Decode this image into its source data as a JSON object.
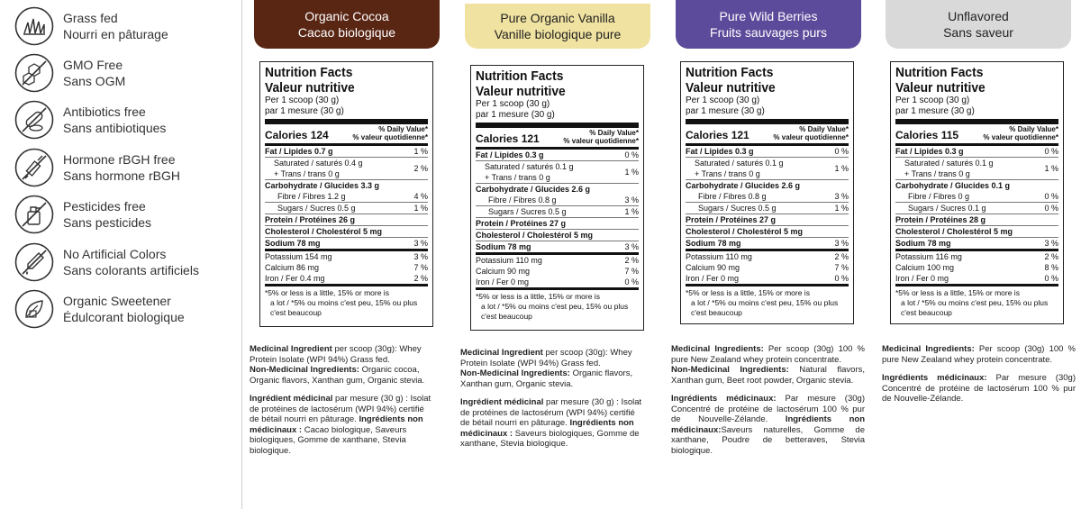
{
  "features": [
    {
      "icon": "grass-icon",
      "en": "Grass fed",
      "fr": "Nourri en pâturage"
    },
    {
      "icon": "dna-molecule-icon",
      "en": "GMO Free",
      "fr": "Sans OGM"
    },
    {
      "icon": "pill-capsule-icon",
      "en": "Antibiotics free",
      "fr": "Sans antibiotiques"
    },
    {
      "icon": "syringe-icon",
      "en": "Hormone rBGH free",
      "fr": "Sans hormone rBGH"
    },
    {
      "icon": "spray-can-icon",
      "en": "Pesticides free",
      "fr": "Sans pesticides"
    },
    {
      "icon": "dropper-icon",
      "en": "No Artificial Colors",
      "fr": "Sans colorants artificiels"
    },
    {
      "icon": "leaf-sweetener-icon",
      "en": "Organic Sweetener",
      "fr": "Édulcorant biologique"
    }
  ],
  "columns": [
    {
      "color": "#5a2614",
      "text_color": "#ffffff",
      "title_en": "Organic Cocoa",
      "title_fr": "Cacao biologique",
      "nf": {
        "title_en": "Nutrition Facts",
        "title_fr": "Valeur nutritive",
        "per_en": "Per 1 scoop (30 g)",
        "per_fr": "par 1 mesure (30 g)",
        "calories": "Calories 124",
        "dv_en": "% Daily Value*",
        "dv_fr": "% valeur quotidienne*",
        "fat": "Fat / Lipides 0.7 g",
        "fat_dv": "1 %",
        "sat": "Saturated / saturés 0.4 g",
        "trans": "+ Trans / trans 0 g",
        "sat_dv": "2 %",
        "carb": "Carbohydrate / Glucides 3.3 g",
        "fibre": "Fibre / Fibres 1.2 g",
        "fibre_dv": "4 %",
        "sugars": "Sugars / Sucres 0.5 g",
        "sugars_dv": "1 %",
        "protein": "Protein / Protéines 26 g",
        "chol": "Cholesterol / Cholestérol 5 mg",
        "sodium": "Sodium 78 mg",
        "sodium_dv": "3 %",
        "potassium": "Potassium 154 mg",
        "potassium_dv": "3 %",
        "calcium": "Calcium 86 mg",
        "calcium_dv": "7 %",
        "iron": "Iron / Fer 0.4 mg",
        "iron_dv": "2 %",
        "foot1": "*5% or less is a little, 15% or more is",
        "foot2": "a lot / *5% ou moins c'est peu, 15% ou plus",
        "foot3": "c'est beaucoup"
      },
      "ing": [
        [
          "Medicinal Ingredient",
          " per scoop (30g): Whey Protein Isolate (WPI 94%) Grass fed."
        ],
        [
          "Non-Medicinal Ingredients:",
          " Organic cocoa, Organic flavors, Xanthan gum, Organic stevia."
        ],
        [
          "Ingrédient médicinal",
          " par mesure (30 g) : Isolat de protéines de lactosérum (WPI 94%) certifié de bétail nourri en pâturage. "
        ],
        [
          "Ingrédients non médicinaux :",
          " Cacao biologique, Saveurs biologiques, Gomme de xanthane, Stevia biologique."
        ]
      ]
    },
    {
      "color": "#f0e2a0",
      "text_color": "#222222",
      "title_en": "Pure Organic Vanilla",
      "title_fr": "Vanille biologique pure",
      "nf": {
        "title_en": "Nutrition Facts",
        "title_fr": "Valeur nutritive",
        "per_en": "Per 1 scoop (30 g)",
        "per_fr": "par 1 mesure (30 g)",
        "calories": "Calories 121",
        "dv_en": "% Daily Value*",
        "dv_fr": "% valeur quotidienne*",
        "fat": "Fat / Lipides 0.3 g",
        "fat_dv": "0 %",
        "sat": "Saturated / saturés 0.1 g",
        "trans": "+ Trans / trans 0 g",
        "sat_dv": "1 %",
        "carb": "Carbohydrate / Glucides 2.6 g",
        "fibre": "Fibre / Fibres 0.8 g",
        "fibre_dv": "3 %",
        "sugars": "Sugars / Sucres 0.5 g",
        "sugars_dv": "1 %",
        "protein": "Protein / Protéines 27 g",
        "chol": "Cholesterol / Cholestérol 5 mg",
        "sodium": "Sodium 78 mg",
        "sodium_dv": "3 %",
        "potassium": "Potassium 110 mg",
        "potassium_dv": "2 %",
        "calcium": "Calcium 90 mg",
        "calcium_dv": "7 %",
        "iron": "Iron / Fer 0 mg",
        "iron_dv": "0 %",
        "foot1": "*5% or less is a little, 15% or more is",
        "foot2": "a lot / *5% ou moins c'est peu, 15% ou plus",
        "foot3": "c'est beaucoup"
      },
      "ing": [
        [
          "Medicinal Ingredient",
          " per scoop (30g): Whey Protein Isolate (WPI 94%) Grass fed."
        ],
        [
          "Non-Medicinal Ingredients:",
          " Organic flavors, Xanthan gum, Organic stevia."
        ],
        [
          "Ingrédient médicinal",
          " par mesure (30 g) : Isolat de protéines de lactosérum (WPI 94%) certifié de bétail nourri en pâturage. "
        ],
        [
          "Ingrédients non médicinaux :",
          " Saveurs biologiques, Gomme de xanthane, Stevia biologique."
        ]
      ]
    },
    {
      "color": "#5c4b9b",
      "text_color": "#ffffff",
      "title_en": "Pure Wild Berries",
      "title_fr": "Fruits sauvages purs",
      "nf": {
        "title_en": "Nutrition Facts",
        "title_fr": "Valeur nutritive",
        "per_en": "Per 1 scoop (30 g)",
        "per_fr": "par 1 mesure (30 g)",
        "calories": "Calories 121",
        "dv_en": "% Daily Value*",
        "dv_fr": "% valeur quotidienne*",
        "fat": "Fat / Lipides 0.3 g",
        "fat_dv": "0 %",
        "sat": "Saturated / saturés 0.1 g",
        "trans": "+ Trans / trans 0 g",
        "sat_dv": "1 %",
        "carb": "Carbohydrate / Glucides 2.6 g",
        "fibre": "Fibre / Fibres 0.8 g",
        "fibre_dv": "3 %",
        "sugars": "Sugars / Sucres 0.5 g",
        "sugars_dv": "1 %",
        "protein": "Protein / Protéines 27 g",
        "chol": "Cholesterol / Cholestérol 5 mg",
        "sodium": "Sodium 78 mg",
        "sodium_dv": "3 %",
        "potassium": "Potassium 110 mg",
        "potassium_dv": "2 %",
        "calcium": "Calcium 90 mg",
        "calcium_dv": "7 %",
        "iron": "Iron / Fer 0 mg",
        "iron_dv": "0 %",
        "foot1": "*5% or less is a little, 15% or more is",
        "foot2": "a lot / *5% ou moins c'est peu, 15% ou plus",
        "foot3": "c'est beaucoup"
      },
      "ing": [
        [
          "Medicinal Ingredients:",
          " Per scoop (30g) 100 % pure New Zealand whey protein concentrate."
        ],
        [
          "Non-Medicinal Ingredients:",
          " Natural flavors, Xanthan gum, Beet root powder, Organic stevia."
        ],
        [
          "Ingrédients médicinaux:",
          " Par mesure (30g) Concentré de protéine de lactosérum 100 % pur de Nouvelle-Zélande. "
        ],
        [
          "Ingrédients non médicinaux:",
          "Saveurs naturelles, Gomme de xanthane, Poudre de betteraves, Stevia biologique."
        ]
      ]
    },
    {
      "color": "#d9d9d9",
      "text_color": "#222222",
      "title_en": "Unflavored",
      "title_fr": "Sans saveur",
      "nf": {
        "title_en": "Nutrition Facts",
        "title_fr": "Valeur nutritive",
        "per_en": "Per 1 scoop (30 g)",
        "per_fr": "par 1 mesure (30 g)",
        "calories": "Calories 115",
        "dv_en": "% Daily Value*",
        "dv_fr": "% valeur quotidienne*",
        "fat": "Fat / Lipides 0.3 g",
        "fat_dv": "0 %",
        "sat": "Saturated / saturés 0.1 g",
        "trans": "+ Trans / trans 0 g",
        "sat_dv": "1 %",
        "carb": "Carbohydrate / Glucides 0.1 g",
        "fibre": "Fibre / Fibres 0 g",
        "fibre_dv": "0 %",
        "sugars": "Sugars / Sucres 0.1 g",
        "sugars_dv": "0 %",
        "protein": "Protein / Protéines 28 g",
        "chol": "Cholesterol / Cholestérol 5 mg",
        "sodium": "Sodium 78 mg",
        "sodium_dv": "3 %",
        "potassium": "Potassium 116 mg",
        "potassium_dv": "2 %",
        "calcium": "Calcium 100 mg",
        "calcium_dv": "8 %",
        "iron": "Iron / Fer 0 mg",
        "iron_dv": "0 %",
        "foot1": "*5% or less is a little, 15% or more is",
        "foot2": "a lot / *5% ou moins c'est peu, 15% ou plus",
        "foot3": "c'est beaucoup"
      },
      "ing": [
        [
          "Medicinal Ingredients:",
          " Per scoop (30g) 100 % pure New Zealand whey protein concentrate."
        ],
        [
          "Ingrédients médicinaux:",
          " Par mesure (30g) Concentré de protéine de lactosérum 100 % pur de Nouvelle-Zélande."
        ]
      ]
    }
  ]
}
